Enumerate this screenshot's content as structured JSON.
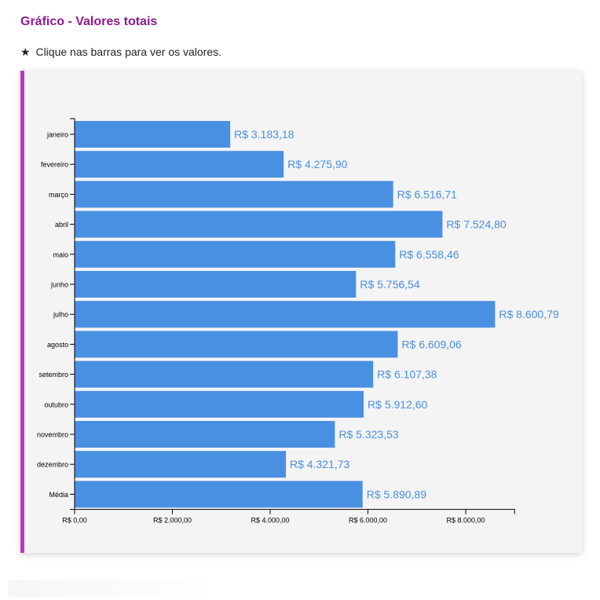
{
  "header": {
    "title": "Gráfico - Valores totais",
    "hint_icon": "star-icon",
    "hint_glyph": "★",
    "hint": "Clique nas barras para ver os valores."
  },
  "colors": {
    "title": "#8e1a8e",
    "accent_border": "#b93ab6",
    "bar": "#4a90e2",
    "value_label": "#4a90e2",
    "axis": "#000000",
    "card_background": "#f4f4f5"
  },
  "chart_data": {
    "type": "bar",
    "orientation": "horizontal",
    "title": "",
    "xlabel": "",
    "ylabel": "",
    "xlim": [
      0,
      9000
    ],
    "grid": false,
    "categories": [
      "janeiro",
      "fevereiro",
      "março",
      "abril",
      "maio",
      "junho",
      "julho",
      "agosto",
      "setembro",
      "outubro",
      "novembro",
      "dezembro",
      "Média"
    ],
    "category_tick_labels": [
      "janeiro",
      "fevereiro",
      "março",
      "abril",
      "maio",
      "junho",
      "julho",
      "agosto",
      "setembro",
      "outubro",
      "novembro",
      "dezembro",
      "Média"
    ],
    "values": [
      3183.18,
      4275.9,
      6516.71,
      7524.8,
      6558.46,
      5756.54,
      8600.79,
      6609.06,
      6107.38,
      5912.6,
      5323.53,
      4321.73,
      5890.89
    ],
    "value_labels": [
      "R$ 3.183,18",
      "R$ 4.275,90",
      "R$ 6.516,71",
      "R$ 7.524,80",
      "R$ 6.558,46",
      "R$ 5.756,54",
      "R$ 8.600,79",
      "R$ 6.609,06",
      "R$ 6.107,38",
      "R$ 5.912,60",
      "R$ 5.323,53",
      "R$ 4.321,73",
      "R$ 5.890,89"
    ],
    "x_ticks": [
      0,
      2000,
      4000,
      6000,
      8000
    ],
    "x_tick_labels": [
      "R$ 0,00",
      "R$ 2.000,00",
      "R$ 4.000,00",
      "R$ 6.000,00",
      "R$ 8.000,00"
    ]
  }
}
